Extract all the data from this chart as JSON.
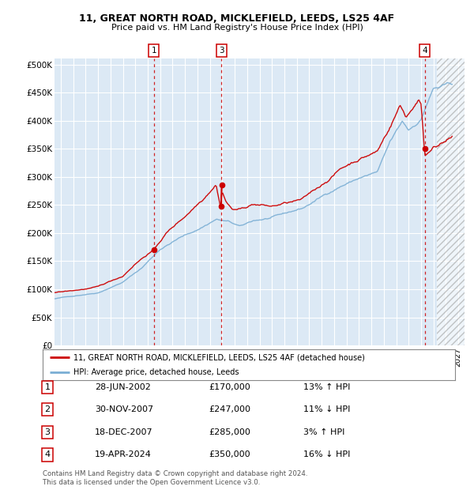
{
  "title1": "11, GREAT NORTH ROAD, MICKLEFIELD, LEEDS, LS25 4AF",
  "title2": "Price paid vs. HM Land Registry's House Price Index (HPI)",
  "legend_line1": "11, GREAT NORTH ROAD, MICKLEFIELD, LEEDS, LS25 4AF (detached house)",
  "legend_line2": "HPI: Average price, detached house, Leeds",
  "transactions": [
    {
      "num": "1",
      "date": "28-JUN-2002",
      "date_dec": 2002.49,
      "price": 170000,
      "pct": "13%",
      "dir": "↑"
    },
    {
      "num": "2",
      "date": "30-NOV-2007",
      "date_dec": 2007.91,
      "price": 247000,
      "pct": "11%",
      "dir": "↓"
    },
    {
      "num": "3",
      "date": "18-DEC-2007",
      "date_dec": 2007.96,
      "price": 285000,
      "pct": "3%",
      "dir": "↑"
    },
    {
      "num": "4",
      "date": "19-APR-2024",
      "date_dec": 2024.3,
      "price": 350000,
      "pct": "16%",
      "dir": "↓"
    }
  ],
  "vline_positions": [
    2002.49,
    2007.94,
    2024.3
  ],
  "vline_labels": [
    "1",
    "3",
    "4"
  ],
  "ylim": [
    0,
    510000
  ],
  "yticks": [
    0,
    50000,
    100000,
    150000,
    200000,
    250000,
    300000,
    350000,
    400000,
    450000,
    500000
  ],
  "xlim_start": 1994.5,
  "xlim_end": 2027.5,
  "hatch_start": 2025.3,
  "bg_color": "#dce9f5",
  "grid_color": "#ffffff",
  "red_color": "#cc0000",
  "blue_color": "#7aaed4",
  "footer_text": "Contains HM Land Registry data © Crown copyright and database right 2024.\nThis data is licensed under the Open Government Licence v3.0."
}
